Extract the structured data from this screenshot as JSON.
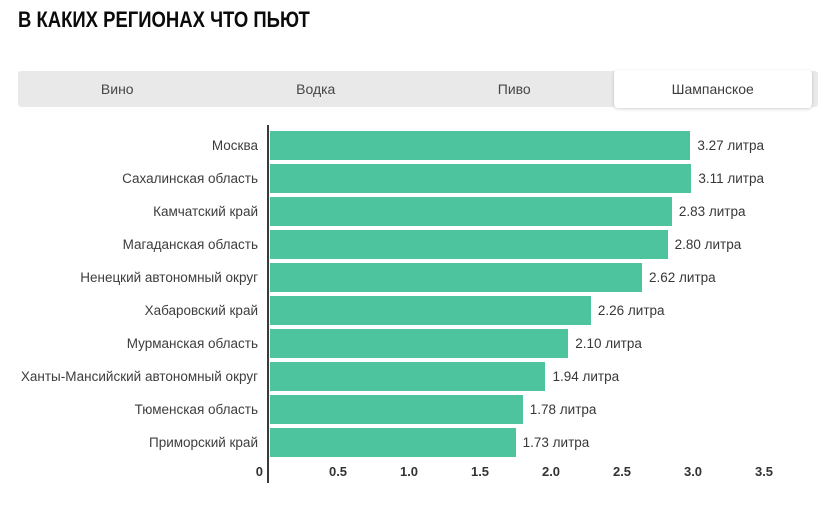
{
  "page": {
    "title": "В КАКИХ РЕГИОНАХ ЧТО ПЬЮТ"
  },
  "tabs": [
    {
      "label": "Вино",
      "active": false
    },
    {
      "label": "Водка",
      "active": false
    },
    {
      "label": "Пиво",
      "active": false
    },
    {
      "label": "Шампанское",
      "active": true
    }
  ],
  "chart_data": {
    "type": "bar",
    "orientation": "horizontal",
    "title": "В КАКИХ РЕГИОНАХ ЧТО ПЬЮТ",
    "active_series": "Шампанское",
    "categories": [
      "Москва",
      "Сахалинская область",
      "Камчатский край",
      "Магаданская область",
      "Ненецкий автономный округ",
      "Хабаровский край",
      "Мурманская область",
      "Ханты-Мансийский автономный округ",
      "Тюменская область",
      "Приморский край"
    ],
    "values": [
      3.27,
      3.11,
      2.83,
      2.8,
      2.62,
      2.26,
      2.1,
      1.94,
      1.78,
      1.73
    ],
    "value_labels": [
      "3.27 литра",
      "3.11 литра",
      "2.83 литра",
      "2.80 литра",
      "2.62 литра",
      "2.26 литра",
      "2.10 литра",
      "1.94 литра",
      "1.78 литра",
      "1.73 литра"
    ],
    "unit": "литра",
    "xlabel": "",
    "ylabel": "",
    "xlim": [
      0,
      3.5
    ],
    "x_ticks": [
      "0",
      "0.5",
      "1.0",
      "1.5",
      "2.0",
      "2.5",
      "3.0",
      "3.5"
    ],
    "grid": false,
    "legend": false,
    "bar_color": "#4dc49d",
    "axis_color": "#3a3a3a"
  }
}
